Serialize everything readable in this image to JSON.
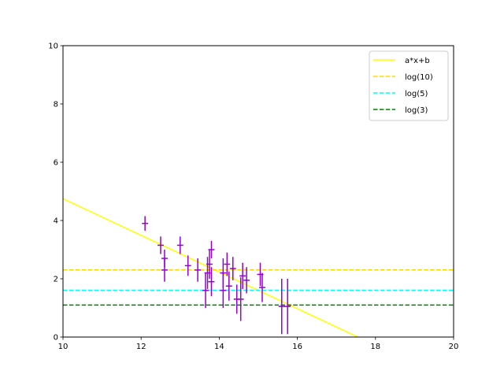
{
  "chart_data": {
    "type": "scatter",
    "title": "",
    "xlabel": "",
    "ylabel": "",
    "xlim": [
      10,
      20
    ],
    "ylim": [
      0,
      10
    ],
    "x_ticks": [
      10,
      12,
      14,
      16,
      18,
      20
    ],
    "y_ticks": [
      0,
      2,
      4,
      6,
      8,
      10
    ],
    "grid": false,
    "legend_position": "top-right",
    "series": [
      {
        "name": "a*x+b",
        "kind": "line",
        "style": "solid",
        "color": "#ffff00",
        "x": [
          10,
          17.55
        ],
        "y": [
          4.75,
          0
        ]
      },
      {
        "name": "log(10)",
        "kind": "hline",
        "style": "dashed",
        "color": "#ffd700",
        "y": 2.3026
      },
      {
        "name": "log(5)",
        "kind": "hline",
        "style": "dashed",
        "color": "#00ffff",
        "y": 1.6094
      },
      {
        "name": "log(3)",
        "kind": "hline",
        "style": "dashed",
        "color": "#008000",
        "y": 1.0986
      }
    ],
    "points": {
      "color": "#9400d3",
      "x_err": 0.08,
      "data": [
        {
          "x": 12.1,
          "y": 3.9,
          "yerr": 0.25
        },
        {
          "x": 12.5,
          "y": 3.15,
          "yerr": 0.3
        },
        {
          "x": 12.6,
          "y": 2.7,
          "yerr": 0.3
        },
        {
          "x": 12.6,
          "y": 2.3,
          "yerr": 0.4
        },
        {
          "x": 13.0,
          "y": 3.15,
          "yerr": 0.3
        },
        {
          "x": 13.2,
          "y": 2.45,
          "yerr": 0.35
        },
        {
          "x": 13.45,
          "y": 2.3,
          "yerr": 0.4
        },
        {
          "x": 13.65,
          "y": 1.6,
          "yerr": 0.6
        },
        {
          "x": 13.7,
          "y": 2.2,
          "yerr": 0.55
        },
        {
          "x": 13.75,
          "y": 2.5,
          "yerr": 0.5
        },
        {
          "x": 13.8,
          "y": 3.0,
          "yerr": 0.3
        },
        {
          "x": 13.8,
          "y": 1.9,
          "yerr": 0.5
        },
        {
          "x": 14.1,
          "y": 2.2,
          "yerr": 0.5
        },
        {
          "x": 14.1,
          "y": 1.6,
          "yerr": 0.6
        },
        {
          "x": 14.2,
          "y": 2.5,
          "yerr": 0.4
        },
        {
          "x": 14.25,
          "y": 1.75,
          "yerr": 0.5
        },
        {
          "x": 14.35,
          "y": 2.35,
          "yerr": 0.4
        },
        {
          "x": 14.45,
          "y": 1.3,
          "yerr": 0.5
        },
        {
          "x": 14.55,
          "y": 1.3,
          "yerr": 0.75
        },
        {
          "x": 14.6,
          "y": 2.1,
          "yerr": 0.45
        },
        {
          "x": 14.7,
          "y": 1.95,
          "yerr": 0.45
        },
        {
          "x": 15.05,
          "y": 2.15,
          "yerr": 0.4
        },
        {
          "x": 15.1,
          "y": 1.7,
          "yerr": 0.5
        },
        {
          "x": 15.6,
          "y": 1.05,
          "yerr": 0.95
        },
        {
          "x": 15.75,
          "y": 1.05,
          "yerr": 0.95
        }
      ]
    }
  }
}
